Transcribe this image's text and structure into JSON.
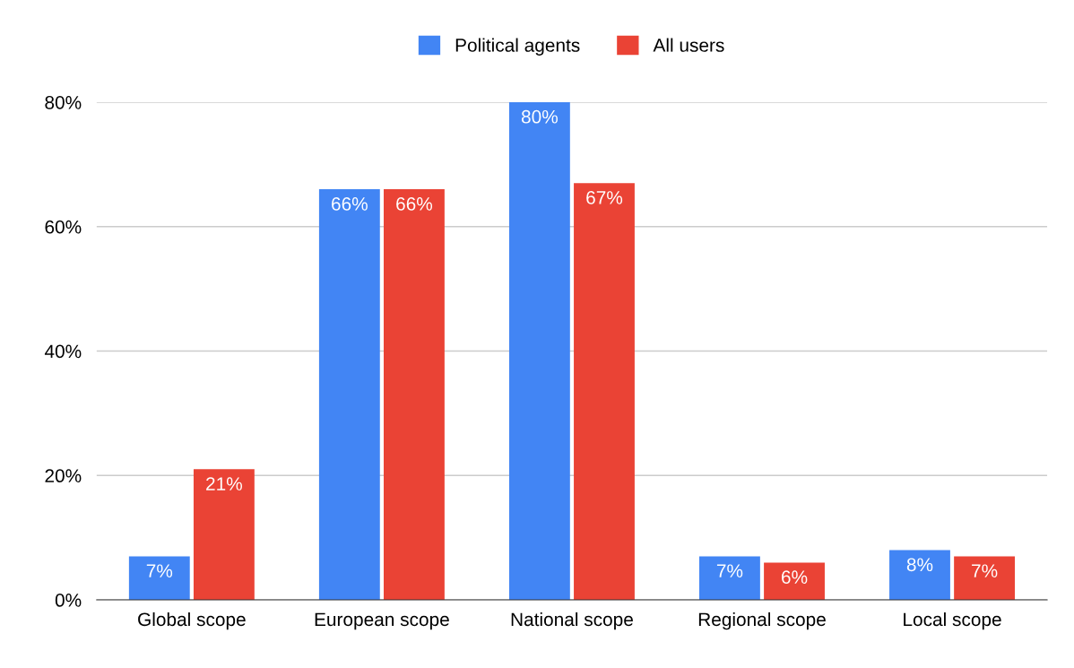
{
  "chart_data": {
    "type": "bar",
    "categories": [
      "Global scope",
      "European scope",
      "National scope",
      "Regional scope",
      "Local scope"
    ],
    "series": [
      {
        "name": "Political agents",
        "color": "#4285f4",
        "values": [
          7,
          66,
          80,
          7,
          8
        ],
        "value_labels": [
          "7%",
          "66%",
          "80%",
          "7%",
          "8%"
        ]
      },
      {
        "name": "All users",
        "color": "#ea4335",
        "values": [
          21,
          66,
          67,
          6,
          7
        ],
        "value_labels": [
          "21%",
          "66%",
          "67%",
          "6%",
          "7%"
        ]
      }
    ],
    "ylim": [
      0,
      80
    ],
    "yticks": [
      {
        "value": 0,
        "label": "0%"
      },
      {
        "value": 20,
        "label": "20%"
      },
      {
        "value": 40,
        "label": "40%"
      },
      {
        "value": 60,
        "label": "60%"
      },
      {
        "value": 80,
        "label": "80%"
      }
    ],
    "grid": "y",
    "legend": "top"
  }
}
